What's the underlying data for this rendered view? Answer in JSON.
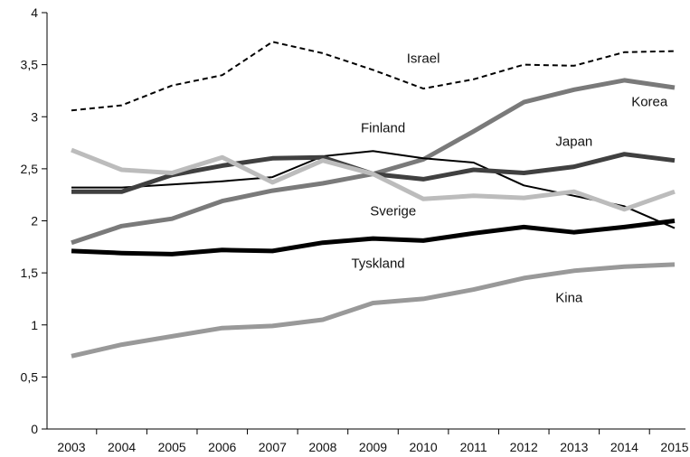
{
  "chart_data": {
    "type": "line",
    "x": [
      2003,
      2004,
      2005,
      2006,
      2007,
      2008,
      2009,
      2010,
      2011,
      2012,
      2013,
      2014,
      2015
    ],
    "ylim": [
      0,
      4
    ],
    "yticks": [
      {
        "value": 0,
        "label": "0"
      },
      {
        "value": 0.5,
        "label": "0,5"
      },
      {
        "value": 1,
        "label": "1"
      },
      {
        "value": 1.5,
        "label": "1,5"
      },
      {
        "value": 2,
        "label": "2"
      },
      {
        "value": 2.5,
        "label": "2,5"
      },
      {
        "value": 3,
        "label": "3"
      },
      {
        "value": 3.5,
        "label": "3,5"
      },
      {
        "value": 4,
        "label": "4"
      }
    ],
    "grid": false,
    "legend": "none",
    "series": [
      {
        "name": "Israel",
        "color": "#000000",
        "style": "dashed",
        "width": "thin",
        "values": [
          3.06,
          3.11,
          3.3,
          3.4,
          3.72,
          3.61,
          3.45,
          3.27,
          3.36,
          3.5,
          3.49,
          3.62,
          3.63
        ],
        "label_at": [
          2010,
          3.52
        ]
      },
      {
        "name": "Korea",
        "color": "#7a7a7a",
        "style": "solid",
        "width": "thick",
        "values": [
          1.79,
          1.95,
          2.02,
          2.19,
          2.29,
          2.36,
          2.45,
          2.59,
          2.86,
          3.14,
          3.26,
          3.35,
          3.28
        ],
        "label_at": [
          2014.5,
          3.1
        ]
      },
      {
        "name": "Finland",
        "color": "#000000",
        "style": "solid",
        "width": "thin",
        "values": [
          2.32,
          2.32,
          2.35,
          2.38,
          2.42,
          2.62,
          2.67,
          2.6,
          2.56,
          2.34,
          2.24,
          2.14,
          1.93
        ],
        "label_at": [
          2009.2,
          2.85
        ]
      },
      {
        "name": "Japan",
        "color": "#404040",
        "style": "solid",
        "width": "thick",
        "values": [
          2.28,
          2.28,
          2.44,
          2.53,
          2.6,
          2.61,
          2.45,
          2.4,
          2.49,
          2.46,
          2.52,
          2.64,
          2.58
        ],
        "label_at": [
          2013.0,
          2.72
        ]
      },
      {
        "name": "Sverige",
        "color": "#bcbcbc",
        "style": "solid",
        "width": "thick",
        "values": [
          2.68,
          2.49,
          2.46,
          2.61,
          2.37,
          2.58,
          2.45,
          2.21,
          2.24,
          2.22,
          2.28,
          2.11,
          2.28
        ],
        "label_at": [
          2009.4,
          2.05
        ]
      },
      {
        "name": "Tyskland",
        "color": "#000000",
        "style": "solid",
        "width": "thick",
        "values": [
          1.71,
          1.69,
          1.68,
          1.72,
          1.71,
          1.79,
          1.83,
          1.81,
          1.88,
          1.94,
          1.89,
          1.94,
          2.0
        ],
        "label_at": [
          2009.1,
          1.55
        ]
      },
      {
        "name": "Kina",
        "color": "#999999",
        "style": "solid",
        "width": "thick",
        "values": [
          0.7,
          0.81,
          0.89,
          0.97,
          0.99,
          1.05,
          1.21,
          1.25,
          1.34,
          1.45,
          1.52,
          1.56,
          1.58
        ],
        "label_at": [
          2012.9,
          1.22
        ]
      }
    ]
  }
}
